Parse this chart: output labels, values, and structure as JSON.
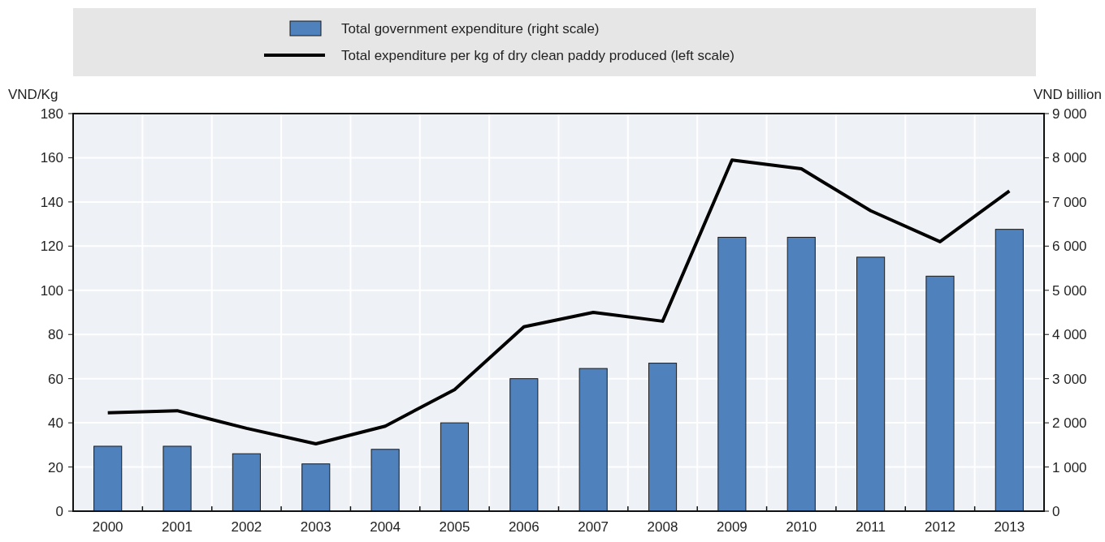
{
  "chart_data": {
    "type": "bar",
    "ylabel": "VND/Kg",
    "y2label": "VND billion",
    "categories": [
      "2000",
      "2001",
      "2002",
      "2003",
      "2004",
      "2005",
      "2006",
      "2007",
      "2008",
      "2009",
      "2010",
      "2011",
      "2012",
      "2013"
    ],
    "series": [
      {
        "name": "Total government expenditure (right scale)",
        "axis": "y2",
        "color": "#4f81bd",
        "values": [
          1470,
          1470,
          1300,
          1070,
          1400,
          2000,
          3000,
          3230,
          3350,
          6200,
          6200,
          5750,
          5320,
          6380
        ]
      },
      {
        "name": "Total expenditure per kg of dry clean paddy produced (left scale)",
        "type": "line",
        "color": "#000000",
        "values": [
          44.5,
          45.5,
          37.5,
          30.5,
          38.5,
          55,
          83.5,
          90,
          86,
          159,
          155,
          136,
          122,
          145
        ]
      }
    ],
    "ylim": [
      0,
      180
    ],
    "yticks": [
      0,
      20,
      40,
      60,
      80,
      100,
      120,
      140,
      160,
      180
    ],
    "y2lim": [
      0,
      9000
    ],
    "y2ticks": [
      0,
      {
        "value": 1000,
        "label": "1 000"
      },
      {
        "value": 2000,
        "label": "2 000"
      },
      {
        "value": 3000,
        "label": "3 000"
      },
      {
        "value": 4000,
        "label": "4 000"
      },
      {
        "value": 5000,
        "label": "5 000"
      },
      {
        "value": 6000,
        "label": "6 000"
      },
      {
        "value": 7000,
        "label": "7 000"
      },
      {
        "value": 8000,
        "label": "8 000"
      },
      {
        "value": 9000,
        "label": "9 000"
      }
    ],
    "grid": true,
    "legend": "top",
    "marker": "none",
    "line_style": "solid"
  }
}
